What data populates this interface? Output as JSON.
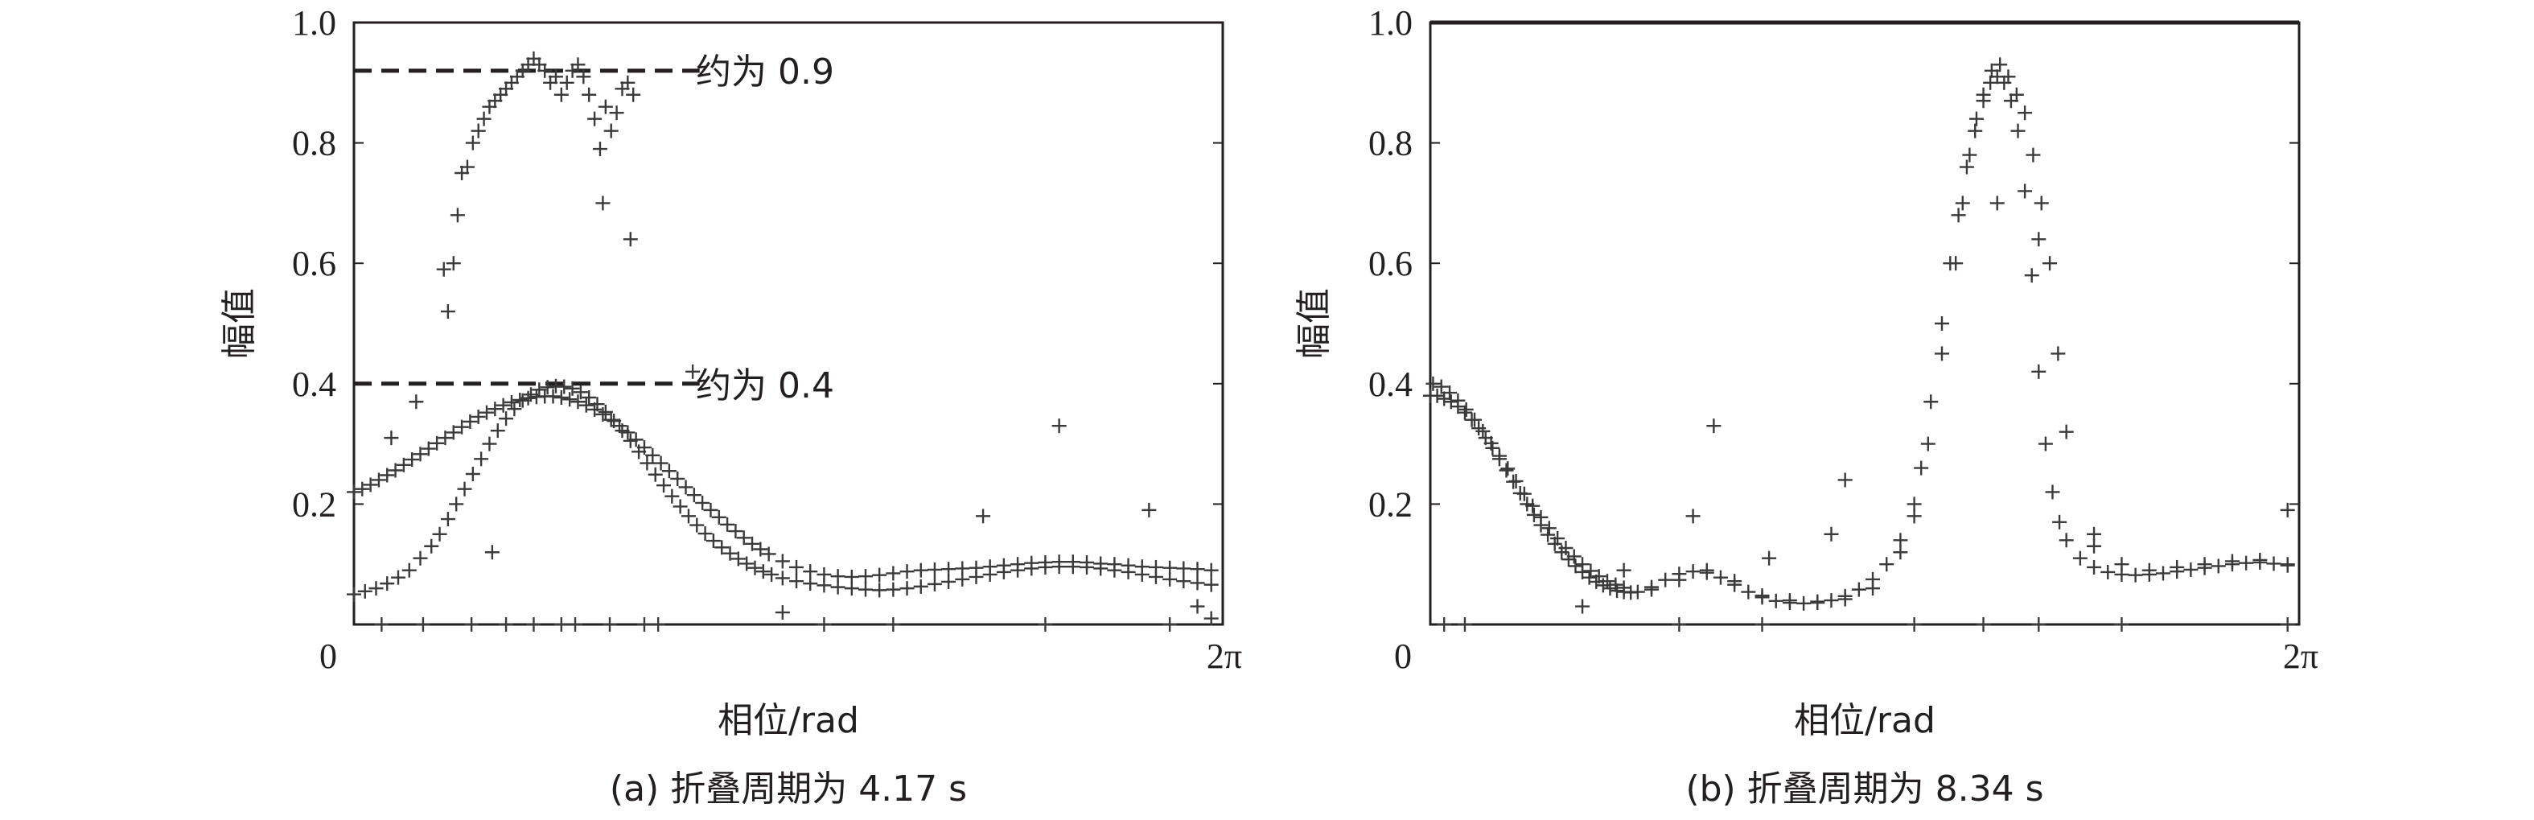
{
  "chart_data": [
    {
      "type": "scatter",
      "ylabel": "幅值",
      "xlabel": "相位/rad",
      "caption": "(a) 折叠周期为 4.17 s",
      "x_tick_labels": [
        "0",
        "2π"
      ],
      "y_ticks": [
        0.2,
        0.4,
        0.6,
        0.8,
        1.0
      ],
      "y_tick_labels": [
        "0.2",
        "0.4",
        "0.6",
        "0.8",
        "1.0"
      ],
      "xlim": [
        0,
        6.2832
      ],
      "ylim": [
        0,
        1.0
      ],
      "marker": "+",
      "annotations": [
        {
          "text": "约为 0.9",
          "y": 0.92,
          "x_range": [
            0,
            2.5
          ]
        },
        {
          "text": "约为 0.4",
          "y": 0.4,
          "x_range": [
            0,
            2.5
          ]
        }
      ],
      "series": [
        {
          "x": [
            0.0,
            0.06,
            0.12,
            0.18,
            0.24,
            0.3,
            0.36,
            0.42,
            0.48,
            0.54,
            0.6,
            0.66,
            0.72,
            0.78,
            0.84,
            0.9,
            0.96,
            1.02,
            1.08,
            1.14,
            1.2,
            1.26,
            1.32,
            1.38,
            1.44,
            1.5,
            1.56,
            1.62,
            1.68,
            1.74,
            1.8,
            1.86,
            1.92,
            1.98,
            2.04,
            2.1,
            2.16,
            2.22,
            2.28,
            2.34,
            2.4,
            2.46,
            2.52,
            2.58,
            2.64,
            2.7,
            2.76,
            2.82,
            2.88,
            2.94,
            3.0,
            3.1,
            3.2,
            3.3,
            3.4,
            3.5,
            3.6,
            3.7,
            3.8,
            3.9,
            4.0,
            4.1,
            4.2,
            4.3,
            4.4,
            4.5,
            4.6,
            4.7,
            4.8,
            4.9,
            5.0,
            5.1,
            5.2,
            5.3,
            5.4,
            5.5,
            5.6,
            5.7,
            5.8,
            5.9,
            6.0,
            6.1,
            6.2
          ],
          "y": [
            0.22,
            0.225,
            0.232,
            0.24,
            0.248,
            0.256,
            0.265,
            0.274,
            0.283,
            0.292,
            0.301,
            0.31,
            0.319,
            0.328,
            0.337,
            0.345,
            0.352,
            0.358,
            0.364,
            0.369,
            0.373,
            0.376,
            0.378,
            0.379,
            0.379,
            0.377,
            0.374,
            0.37,
            0.364,
            0.357,
            0.349,
            0.34,
            0.33,
            0.319,
            0.307,
            0.294,
            0.281,
            0.268,
            0.255,
            0.242,
            0.228,
            0.215,
            0.202,
            0.19,
            0.178,
            0.166,
            0.155,
            0.144,
            0.134,
            0.125,
            0.117,
            0.105,
            0.095,
            0.088,
            0.083,
            0.08,
            0.079,
            0.08,
            0.082,
            0.085,
            0.088,
            0.09,
            0.091,
            0.092,
            0.093,
            0.094,
            0.096,
            0.098,
            0.1,
            0.102,
            0.103,
            0.104,
            0.104,
            0.103,
            0.101,
            0.1,
            0.098,
            0.096,
            0.095,
            0.094,
            0.093,
            0.092,
            0.09
          ]
        },
        {
          "x": [
            0.0,
            0.08,
            0.16,
            0.24,
            0.32,
            0.4,
            0.48,
            0.56,
            0.62,
            0.68,
            0.74,
            0.8,
            0.86,
            0.92,
            0.98,
            1.04,
            1.1,
            1.16,
            1.22,
            1.28,
            1.34,
            1.4,
            1.46,
            1.52,
            1.58,
            1.64,
            1.7,
            1.76,
            1.82,
            1.88,
            1.94,
            2.0,
            2.06,
            2.12,
            2.18,
            2.24,
            2.3,
            2.36,
            2.42,
            2.48,
            2.54,
            2.6,
            2.66,
            2.72,
            2.78,
            2.84,
            2.9,
            2.96,
            3.02,
            3.1,
            3.2,
            3.3,
            3.4,
            3.5,
            3.6,
            3.7,
            3.8,
            3.9,
            4.0,
            4.1,
            4.2,
            4.3,
            4.4,
            4.5,
            4.6,
            4.7,
            4.8,
            4.9,
            5.0,
            5.1,
            5.2,
            5.3,
            5.4,
            5.5,
            5.6,
            5.7,
            5.8,
            5.9,
            6.0,
            6.1,
            6.2
          ],
          "y": [
            0.05,
            0.055,
            0.06,
            0.068,
            0.078,
            0.09,
            0.11,
            0.13,
            0.15,
            0.175,
            0.2,
            0.225,
            0.25,
            0.275,
            0.3,
            0.322,
            0.342,
            0.358,
            0.372,
            0.382,
            0.39,
            0.394,
            0.396,
            0.395,
            0.392,
            0.386,
            0.377,
            0.366,
            0.353,
            0.338,
            0.322,
            0.305,
            0.287,
            0.268,
            0.249,
            0.231,
            0.213,
            0.196,
            0.18,
            0.165,
            0.151,
            0.139,
            0.128,
            0.118,
            0.109,
            0.101,
            0.094,
            0.088,
            0.083,
            0.077,
            0.072,
            0.068,
            0.065,
            0.062,
            0.06,
            0.058,
            0.057,
            0.058,
            0.06,
            0.063,
            0.067,
            0.071,
            0.075,
            0.079,
            0.083,
            0.087,
            0.09,
            0.093,
            0.095,
            0.096,
            0.096,
            0.095,
            0.093,
            0.09,
            0.087,
            0.083,
            0.079,
            0.075,
            0.072,
            0.069,
            0.066
          ]
        },
        {
          "x": [
            0.65,
            0.68,
            0.72,
            0.75,
            0.78,
            0.82,
            0.86,
            0.9,
            0.94,
            0.98,
            1.02,
            1.06,
            1.1,
            1.14,
            1.18,
            1.22,
            1.26,
            1.3,
            1.34,
            1.38,
            1.42,
            1.46,
            1.5,
            1.54,
            1.58,
            1.62,
            1.66,
            1.7,
            1.74,
            1.78,
            1.82,
            1.86,
            1.9,
            1.94,
            1.98,
            2.02
          ],
          "y": [
            0.59,
            0.52,
            0.6,
            0.68,
            0.75,
            0.76,
            0.8,
            0.82,
            0.84,
            0.86,
            0.87,
            0.88,
            0.89,
            0.9,
            0.91,
            0.92,
            0.93,
            0.94,
            0.93,
            0.92,
            0.9,
            0.91,
            0.88,
            0.9,
            0.92,
            0.93,
            0.91,
            0.88,
            0.84,
            0.79,
            0.86,
            0.82,
            0.85,
            0.89,
            0.9,
            0.88
          ]
        },
        {
          "x": [
            0.27,
            0.45,
            1.0,
            1.8,
            2.0,
            2.45,
            3.1,
            4.55,
            5.1,
            5.75,
            6.1,
            6.2
          ],
          "y": [
            0.31,
            0.37,
            0.12,
            0.7,
            0.64,
            0.42,
            0.02,
            0.18,
            0.33,
            0.19,
            0.03,
            0.01
          ]
        },
        {
          "x": [
            0.2,
            0.5,
            0.85,
            1.1,
            1.3,
            1.5,
            1.6,
            1.85,
            2.1,
            2.2,
            3.4,
            3.9,
            5.0,
            5.9
          ],
          "y": [
            0,
            0,
            0,
            0,
            0,
            0,
            0,
            0,
            0,
            0,
            0,
            0,
            0,
            0
          ]
        }
      ]
    },
    {
      "type": "scatter",
      "ylabel": "幅值",
      "xlabel": "相位/rad",
      "caption": "(b) 折叠周期为 8.34 s",
      "x_tick_labels": [
        "0",
        "2π"
      ],
      "y_ticks": [
        0.2,
        0.4,
        0.6,
        0.8,
        1.0
      ],
      "y_tick_labels": [
        "0.2",
        "0.4",
        "0.6",
        "0.8",
        "1.0"
      ],
      "xlim": [
        0,
        6.2832
      ],
      "ylim": [
        0,
        1.0
      ],
      "marker": "+",
      "series": [
        {
          "x": [
            0.0,
            0.05,
            0.1,
            0.15,
            0.2,
            0.25,
            0.3,
            0.35,
            0.4,
            0.45,
            0.5,
            0.55,
            0.6,
            0.65,
            0.7,
            0.75,
            0.8,
            0.85,
            0.9,
            0.95,
            1.0,
            1.05,
            1.1,
            1.15,
            1.2,
            1.25,
            1.3,
            1.35,
            1.4,
            1.45,
            1.5,
            1.6,
            1.7,
            1.8,
            1.9,
            2.0,
            2.1,
            2.2,
            2.3,
            2.4,
            2.5,
            2.6,
            2.7,
            2.8,
            2.9,
            3.0,
            3.1,
            3.2,
            3.3,
            3.4,
            3.5,
            3.6,
            3.7,
            3.8,
            3.85,
            3.9,
            3.95,
            4.0,
            4.05,
            4.1,
            4.15,
            4.2,
            4.25,
            4.3,
            4.35,
            4.4,
            4.45,
            4.5,
            4.55,
            4.6,
            4.7,
            4.8,
            4.9,
            5.0,
            5.1,
            5.2,
            5.3,
            5.4,
            5.5,
            5.6,
            5.7,
            5.8,
            5.9,
            6.0,
            6.1,
            6.2
          ],
          "y": [
            0.38,
            0.38,
            0.375,
            0.37,
            0.362,
            0.352,
            0.34,
            0.326,
            0.31,
            0.293,
            0.275,
            0.256,
            0.237,
            0.218,
            0.2,
            0.182,
            0.165,
            0.149,
            0.134,
            0.12,
            0.108,
            0.097,
            0.087,
            0.078,
            0.071,
            0.065,
            0.06,
            0.056,
            0.054,
            0.053,
            0.054,
            0.062,
            0.074,
            0.084,
            0.088,
            0.086,
            0.078,
            0.066,
            0.054,
            0.045,
            0.039,
            0.036,
            0.035,
            0.036,
            0.04,
            0.047,
            0.058,
            0.075,
            0.1,
            0.14,
            0.2,
            0.3,
            0.45,
            0.6,
            0.7,
            0.78,
            0.84,
            0.88,
            0.9,
            0.91,
            0.9,
            0.87,
            0.82,
            0.72,
            0.58,
            0.42,
            0.3,
            0.22,
            0.17,
            0.14,
            0.11,
            0.095,
            0.087,
            0.083,
            0.082,
            0.083,
            0.085,
            0.088,
            0.091,
            0.094,
            0.097,
            0.1,
            0.102,
            0.103,
            0.101,
            0.098
          ]
        },
        {
          "x": [
            0.02,
            0.08,
            0.14,
            0.2,
            0.26,
            0.32,
            0.38,
            0.44,
            0.5,
            0.56,
            0.62,
            0.68,
            0.74,
            0.8,
            0.86,
            0.92,
            0.98,
            1.04,
            1.1,
            1.16,
            1.22,
            1.28,
            1.34,
            1.4,
            1.6,
            1.8,
            2.0,
            2.2,
            2.4,
            2.6,
            2.8,
            3.0,
            3.2,
            3.4,
            3.55,
            3.62,
            3.7,
            3.76,
            3.82,
            3.88,
            3.94,
            4.0,
            4.06,
            4.12,
            4.18,
            4.24,
            4.3,
            4.36,
            4.42,
            4.48,
            4.54,
            4.6,
            4.8,
            5.0,
            5.2,
            5.4,
            5.6,
            5.8,
            6.0,
            6.2
          ],
          "y": [
            0.4,
            0.395,
            0.385,
            0.372,
            0.357,
            0.34,
            0.321,
            0.301,
            0.28,
            0.259,
            0.238,
            0.217,
            0.197,
            0.178,
            0.16,
            0.143,
            0.127,
            0.113,
            0.1,
            0.089,
            0.08,
            0.072,
            0.066,
            0.061,
            0.058,
            0.074,
            0.09,
            0.072,
            0.048,
            0.04,
            0.038,
            0.042,
            0.06,
            0.12,
            0.26,
            0.37,
            0.5,
            0.6,
            0.68,
            0.76,
            0.82,
            0.87,
            0.92,
            0.93,
            0.91,
            0.88,
            0.85,
            0.78,
            0.7,
            0.6,
            0.45,
            0.32,
            0.15,
            0.1,
            0.09,
            0.095,
            0.1,
            0.105,
            0.107,
            0.1
          ]
        },
        {
          "x": [
            1.1,
            1.4,
            1.9,
            2.05,
            2.45,
            2.9,
            3.0,
            3.5,
            4.1,
            4.4,
            4.8,
            6.2
          ],
          "y": [
            0.03,
            0.09,
            0.18,
            0.33,
            0.11,
            0.15,
            0.24,
            0.18,
            0.7,
            0.64,
            0.13,
            0.19
          ]
        },
        {
          "x": [
            0.1,
            0.25,
            1.8,
            2.4,
            3.5,
            4.0,
            4.4,
            5.0,
            6.2
          ],
          "y": [
            0,
            0,
            0,
            0,
            0,
            0,
            0,
            0,
            0
          ]
        }
      ]
    }
  ]
}
